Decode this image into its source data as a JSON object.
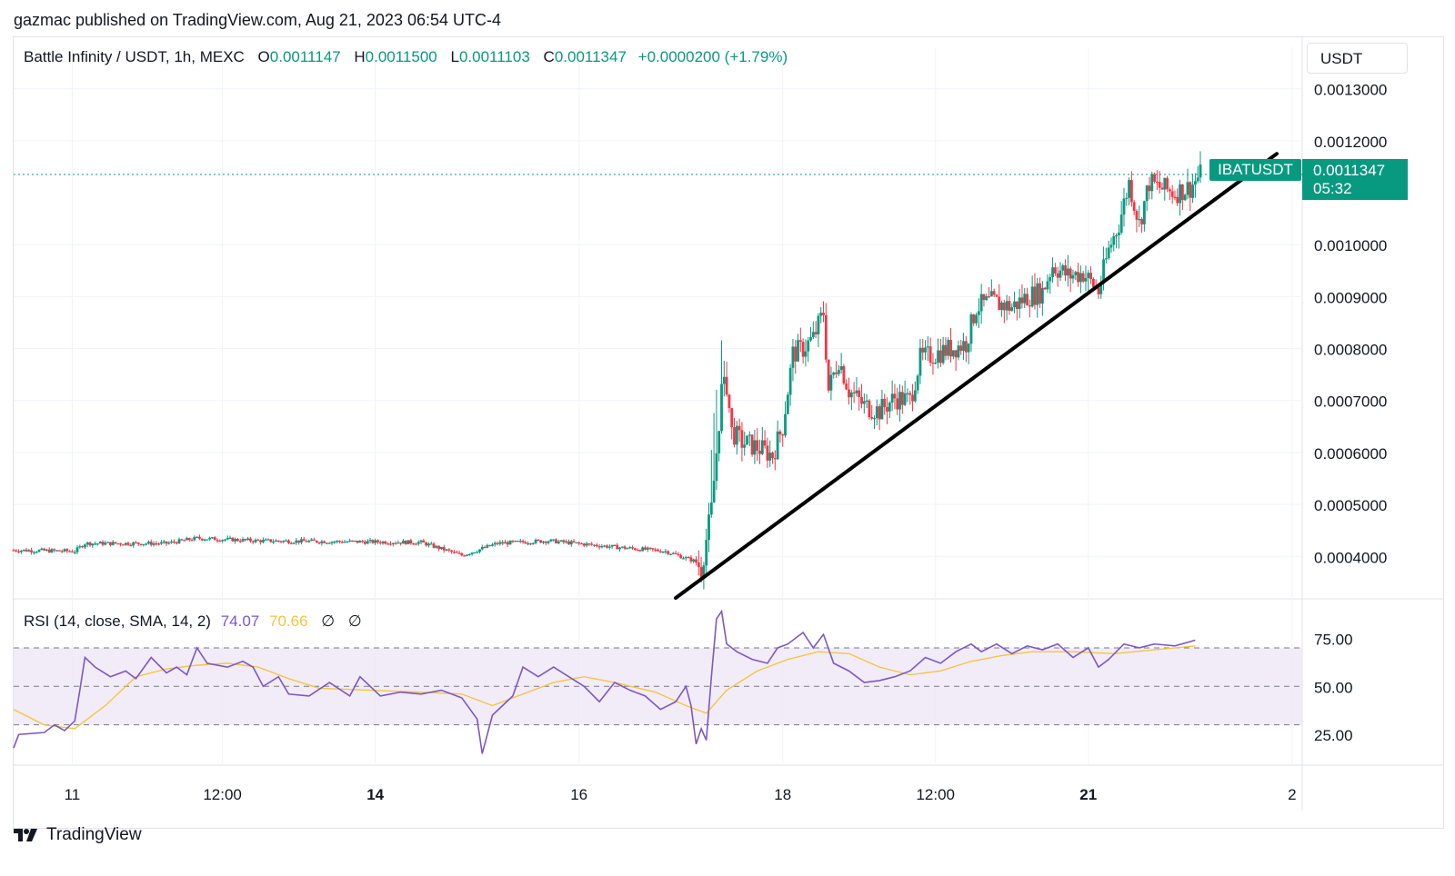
{
  "header": {
    "published_by": "gazmac published on TradingView.com, Aug 21, 2023 06:54 UTC-4"
  },
  "legend": {
    "symbol": "Battle Infinity / USDT, 1h, MEXC",
    "o_key": "O",
    "o_val": "0.0011147",
    "h_key": "H",
    "h_val": "0.0011500",
    "l_key": "L",
    "l_val": "0.0011103",
    "c_key": "C",
    "c_val": "0.0011347",
    "change": "+0.0000200 (+1.79%)"
  },
  "currency_button": "USDT",
  "price_label": {
    "ticker": "IBATUSDT",
    "last": "0.0011347",
    "countdown": "05:32"
  },
  "rsi_legend": {
    "title": "RSI (14, close, SMA, 14, 2)",
    "rsi": "74.07",
    "ma": "70.66",
    "na1": "∅",
    "na2": "∅"
  },
  "colors": {
    "up": "#089981",
    "down": "#f23645",
    "rsi": "#7e57c2",
    "rsi_ma": "#f5c542",
    "band": "#ede7f6"
  },
  "logo_text": "TradingView",
  "chart_data": [
    {
      "type": "candlestick",
      "title": "Battle Infinity / USDT, 1h, MEXC",
      "y_ticks": [
        "0.0013000",
        "0.0012000",
        "0.0010000",
        "0.0009000",
        "0.0008000",
        "0.0007000",
        "0.0006000",
        "0.0005000",
        "0.0004000"
      ],
      "ylim": [
        0.00032,
        0.00131
      ],
      "x_ticks": [
        {
          "label": "11",
          "bold": false
        },
        {
          "label": "12:00",
          "bold": false
        },
        {
          "label": "14",
          "bold": true
        },
        {
          "label": "16",
          "bold": false
        },
        {
          "label": "18",
          "bold": false
        },
        {
          "label": "12:00",
          "bold": false
        },
        {
          "label": "21",
          "bold": true
        },
        {
          "label": "2",
          "bold": false
        }
      ],
      "close_series": [
        {
          "x": 0,
          "y": 0.000412
        },
        {
          "x": 12,
          "y": 0.00041
        },
        {
          "x": 14,
          "y": 0.000425
        },
        {
          "x": 30,
          "y": 0.000425
        },
        {
          "x": 36,
          "y": 0.000435
        },
        {
          "x": 48,
          "y": 0.00043
        },
        {
          "x": 80,
          "y": 0.000427
        },
        {
          "x": 88,
          "y": 0.000402
        },
        {
          "x": 95,
          "y": 0.000425
        },
        {
          "x": 105,
          "y": 0.00043
        },
        {
          "x": 118,
          "y": 0.000418
        },
        {
          "x": 128,
          "y": 0.00041
        },
        {
          "x": 134,
          "y": 0.00039
        },
        {
          "x": 135,
          "y": 0.000375
        },
        {
          "x": 137,
          "y": 0.00049
        },
        {
          "x": 138,
          "y": 0.0006
        },
        {
          "x": 139,
          "y": 0.00072
        },
        {
          "x": 140,
          "y": 0.00073
        },
        {
          "x": 141,
          "y": 0.00064
        },
        {
          "x": 143,
          "y": 0.00062
        },
        {
          "x": 146,
          "y": 0.00061
        },
        {
          "x": 149,
          "y": 0.000595
        },
        {
          "x": 151,
          "y": 0.00065
        },
        {
          "x": 153,
          "y": 0.00079
        },
        {
          "x": 155,
          "y": 0.0008
        },
        {
          "x": 157,
          "y": 0.00082
        },
        {
          "x": 159,
          "y": 0.00087
        },
        {
          "x": 160,
          "y": 0.00072
        },
        {
          "x": 162,
          "y": 0.00078
        },
        {
          "x": 164,
          "y": 0.00072
        },
        {
          "x": 167,
          "y": 0.00069
        },
        {
          "x": 170,
          "y": 0.00068
        },
        {
          "x": 173,
          "y": 0.000705
        },
        {
          "x": 176,
          "y": 0.0007
        },
        {
          "x": 178,
          "y": 0.00078
        },
        {
          "x": 181,
          "y": 0.00079
        },
        {
          "x": 184,
          "y": 0.0008
        },
        {
          "x": 187,
          "y": 0.00081
        },
        {
          "x": 189,
          "y": 0.00088
        },
        {
          "x": 192,
          "y": 0.00089
        },
        {
          "x": 196,
          "y": 0.00088
        },
        {
          "x": 199,
          "y": 0.0009
        },
        {
          "x": 202,
          "y": 0.00091
        },
        {
          "x": 204,
          "y": 0.00096
        },
        {
          "x": 207,
          "y": 0.00094
        },
        {
          "x": 210,
          "y": 0.000945
        },
        {
          "x": 213,
          "y": 0.00091
        },
        {
          "x": 215,
          "y": 0.00099
        },
        {
          "x": 217,
          "y": 0.00104
        },
        {
          "x": 219,
          "y": 0.00112
        },
        {
          "x": 221,
          "y": 0.00104
        },
        {
          "x": 223,
          "y": 0.00112
        },
        {
          "x": 225,
          "y": 0.00111
        },
        {
          "x": 228,
          "y": 0.0011
        },
        {
          "x": 231,
          "y": 0.00111
        },
        {
          "x": 233,
          "y": 0.001135
        }
      ],
      "trendline": [
        {
          "x": 130,
          "y": 0.00032
        },
        {
          "x": 248,
          "y": 0.001175
        }
      ]
    },
    {
      "type": "line",
      "title": "RSI (14, close, SMA, 14, 2)",
      "y_ticks": [
        "75.00",
        "50.00",
        "25.00"
      ],
      "ylim": [
        10,
        95
      ],
      "bands": {
        "upper": 70,
        "middle": 50,
        "lower": 30
      },
      "series": [
        {
          "name": "RSI",
          "values": [
            {
              "x": 0,
              "y": 18
            },
            {
              "x": 1,
              "y": 25
            },
            {
              "x": 6,
              "y": 26
            },
            {
              "x": 8,
              "y": 30
            },
            {
              "x": 10,
              "y": 27
            },
            {
              "x": 12,
              "y": 32
            },
            {
              "x": 13,
              "y": 48
            },
            {
              "x": 14,
              "y": 65
            },
            {
              "x": 16,
              "y": 60
            },
            {
              "x": 19,
              "y": 55
            },
            {
              "x": 22,
              "y": 58
            },
            {
              "x": 24,
              "y": 54
            },
            {
              "x": 27,
              "y": 65
            },
            {
              "x": 30,
              "y": 57
            },
            {
              "x": 32,
              "y": 60
            },
            {
              "x": 34,
              "y": 56
            },
            {
              "x": 36,
              "y": 70
            },
            {
              "x": 38,
              "y": 62
            },
            {
              "x": 42,
              "y": 60
            },
            {
              "x": 45,
              "y": 63
            },
            {
              "x": 47,
              "y": 60
            },
            {
              "x": 49,
              "y": 50
            },
            {
              "x": 52,
              "y": 55
            },
            {
              "x": 54,
              "y": 46
            },
            {
              "x": 58,
              "y": 45
            },
            {
              "x": 62,
              "y": 52
            },
            {
              "x": 66,
              "y": 45
            },
            {
              "x": 68,
              "y": 55
            },
            {
              "x": 72,
              "y": 45
            },
            {
              "x": 76,
              "y": 47
            },
            {
              "x": 80,
              "y": 46
            },
            {
              "x": 84,
              "y": 48
            },
            {
              "x": 88,
              "y": 44
            },
            {
              "x": 91,
              "y": 33
            },
            {
              "x": 92,
              "y": 15
            },
            {
              "x": 94,
              "y": 35
            },
            {
              "x": 98,
              "y": 45
            },
            {
              "x": 100,
              "y": 60
            },
            {
              "x": 103,
              "y": 55
            },
            {
              "x": 106,
              "y": 60
            },
            {
              "x": 109,
              "y": 55
            },
            {
              "x": 112,
              "y": 50
            },
            {
              "x": 115,
              "y": 42
            },
            {
              "x": 118,
              "y": 52
            },
            {
              "x": 121,
              "y": 48
            },
            {
              "x": 124,
              "y": 45
            },
            {
              "x": 127,
              "y": 38
            },
            {
              "x": 130,
              "y": 42
            },
            {
              "x": 132,
              "y": 50
            },
            {
              "x": 133,
              "y": 40
            },
            {
              "x": 134,
              "y": 20
            },
            {
              "x": 135,
              "y": 28
            },
            {
              "x": 136,
              "y": 22
            },
            {
              "x": 137,
              "y": 55
            },
            {
              "x": 138,
              "y": 85
            },
            {
              "x": 139,
              "y": 89
            },
            {
              "x": 140,
              "y": 72
            },
            {
              "x": 142,
              "y": 68
            },
            {
              "x": 145,
              "y": 64
            },
            {
              "x": 148,
              "y": 62
            },
            {
              "x": 150,
              "y": 70
            },
            {
              "x": 152,
              "y": 72
            },
            {
              "x": 155,
              "y": 78
            },
            {
              "x": 157,
              "y": 70
            },
            {
              "x": 159,
              "y": 77
            },
            {
              "x": 161,
              "y": 62
            },
            {
              "x": 164,
              "y": 58
            },
            {
              "x": 167,
              "y": 52
            },
            {
              "x": 170,
              "y": 53
            },
            {
              "x": 173,
              "y": 55
            },
            {
              "x": 176,
              "y": 58
            },
            {
              "x": 179,
              "y": 65
            },
            {
              "x": 182,
              "y": 62
            },
            {
              "x": 185,
              "y": 68
            },
            {
              "x": 188,
              "y": 72
            },
            {
              "x": 190,
              "y": 68
            },
            {
              "x": 193,
              "y": 72
            },
            {
              "x": 196,
              "y": 67
            },
            {
              "x": 199,
              "y": 71
            },
            {
              "x": 202,
              "y": 69
            },
            {
              "x": 205,
              "y": 72
            },
            {
              "x": 208,
              "y": 65
            },
            {
              "x": 211,
              "y": 70
            },
            {
              "x": 213,
              "y": 60
            },
            {
              "x": 215,
              "y": 64
            },
            {
              "x": 218,
              "y": 72
            },
            {
              "x": 221,
              "y": 70
            },
            {
              "x": 224,
              "y": 72
            },
            {
              "x": 228,
              "y": 71
            },
            {
              "x": 232,
              "y": 74
            }
          ]
        },
        {
          "name": "RSI-based MA",
          "values": [
            {
              "x": 0,
              "y": 38
            },
            {
              "x": 6,
              "y": 30
            },
            {
              "x": 12,
              "y": 28
            },
            {
              "x": 18,
              "y": 40
            },
            {
              "x": 24,
              "y": 55
            },
            {
              "x": 30,
              "y": 59
            },
            {
              "x": 36,
              "y": 61
            },
            {
              "x": 42,
              "y": 62
            },
            {
              "x": 48,
              "y": 60
            },
            {
              "x": 54,
              "y": 54
            },
            {
              "x": 60,
              "y": 49
            },
            {
              "x": 70,
              "y": 48
            },
            {
              "x": 80,
              "y": 47
            },
            {
              "x": 88,
              "y": 46
            },
            {
              "x": 94,
              "y": 40
            },
            {
              "x": 100,
              "y": 46
            },
            {
              "x": 106,
              "y": 52
            },
            {
              "x": 112,
              "y": 55
            },
            {
              "x": 118,
              "y": 52
            },
            {
              "x": 126,
              "y": 47
            },
            {
              "x": 132,
              "y": 40
            },
            {
              "x": 136,
              "y": 36
            },
            {
              "x": 140,
              "y": 48
            },
            {
              "x": 146,
              "y": 58
            },
            {
              "x": 152,
              "y": 64
            },
            {
              "x": 158,
              "y": 68
            },
            {
              "x": 164,
              "y": 67
            },
            {
              "x": 170,
              "y": 60
            },
            {
              "x": 176,
              "y": 56
            },
            {
              "x": 182,
              "y": 58
            },
            {
              "x": 188,
              "y": 63
            },
            {
              "x": 194,
              "y": 66
            },
            {
              "x": 200,
              "y": 68
            },
            {
              "x": 208,
              "y": 68
            },
            {
              "x": 216,
              "y": 67
            },
            {
              "x": 224,
              "y": 69
            },
            {
              "x": 232,
              "y": 71
            }
          ]
        }
      ]
    }
  ]
}
